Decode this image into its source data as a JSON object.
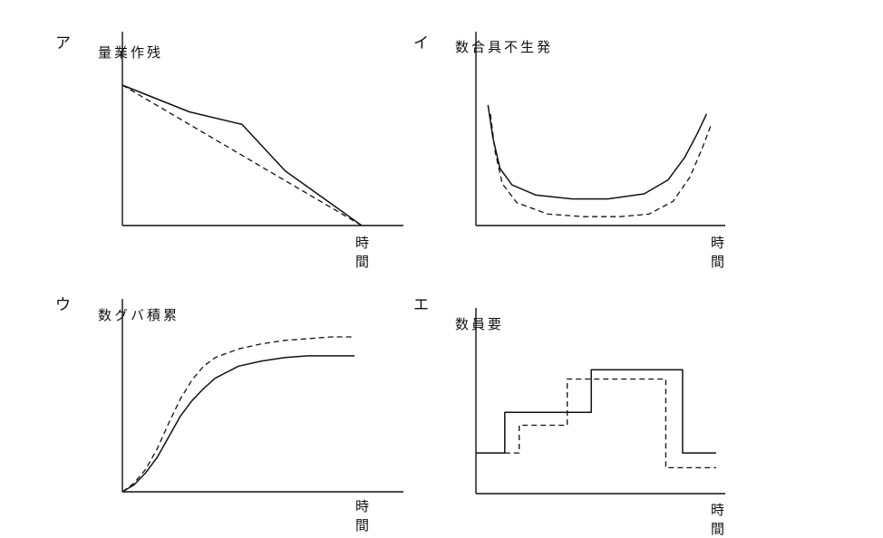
{
  "chart_data": [
    {
      "panel": "ア",
      "type": "line",
      "ylabel": "残作業量",
      "xlabel": "時間",
      "xlim": [
        0,
        10
      ],
      "ylim": [
        0,
        10
      ],
      "series": [
        {
          "style": "solid",
          "x": [
            0,
            2.8,
            5.0,
            6.8,
            10.0
          ],
          "y": [
            10.0,
            8.1,
            7.2,
            3.9,
            0.0
          ]
        },
        {
          "style": "dashed",
          "x": [
            0,
            10.0
          ],
          "y": [
            10.0,
            0.0
          ]
        }
      ]
    },
    {
      "panel": "イ",
      "type": "line",
      "ylabel": "発生不具合数",
      "xlabel": "時間",
      "xlim": [
        0,
        10
      ],
      "ylim": [
        0,
        10
      ],
      "series": [
        {
          "style": "solid",
          "x": [
            0.5,
            0.7,
            1.0,
            1.5,
            2.5,
            4.0,
            5.5,
            7.0,
            8.0,
            8.7,
            9.2,
            9.6
          ],
          "y": [
            9.5,
            7.0,
            4.5,
            3.2,
            2.4,
            2.1,
            2.1,
            2.5,
            3.6,
            5.4,
            7.2,
            8.8
          ]
        },
        {
          "style": "dashed",
          "x": [
            0.6,
            0.8,
            1.1,
            1.7,
            3.0,
            4.5,
            6.0,
            7.2,
            8.2,
            8.9,
            9.4,
            9.8
          ],
          "y": [
            8.8,
            5.8,
            3.3,
            1.8,
            0.9,
            0.7,
            0.7,
            0.9,
            1.9,
            3.8,
            6.0,
            8.0
          ]
        }
      ]
    },
    {
      "panel": "ウ",
      "type": "line",
      "ylabel": "累積バグ数",
      "xlabel": "時間",
      "xlim": [
        0,
        10
      ],
      "ylim": [
        0,
        10
      ],
      "series": [
        {
          "style": "solid",
          "x": [
            0,
            0.5,
            1.0,
            1.5,
            2.0,
            2.5,
            3.0,
            3.5,
            4.0,
            5.0,
            6.0,
            7.0,
            8.0,
            9.0,
            10.0
          ],
          "y": [
            0,
            0.4,
            1.1,
            2.0,
            3.2,
            4.4,
            5.3,
            6.0,
            6.6,
            7.3,
            7.6,
            7.8,
            7.9,
            7.9,
            7.9
          ]
        },
        {
          "style": "dashed",
          "x": [
            0,
            0.5,
            1.0,
            1.5,
            2.0,
            2.5,
            3.0,
            3.5,
            4.0,
            5.0,
            6.0,
            7.0,
            8.0,
            9.0,
            10.0
          ],
          "y": [
            0,
            0.5,
            1.3,
            2.5,
            4.0,
            5.4,
            6.5,
            7.3,
            7.8,
            8.3,
            8.6,
            8.8,
            8.9,
            9.0,
            9.0
          ]
        }
      ]
    },
    {
      "panel": "エ",
      "type": "line",
      "ylabel": "要員数",
      "xlabel": "時間",
      "xlim": [
        0,
        10
      ],
      "ylim": [
        0,
        10
      ],
      "series": [
        {
          "style": "solid",
          "x": [
            0,
            1.2,
            1.2,
            4.8,
            4.8,
            8.6,
            8.6,
            10.0
          ],
          "y": [
            2.2,
            2.2,
            4.4,
            4.4,
            6.7,
            6.7,
            2.2,
            2.2
          ]
        },
        {
          "style": "dashed",
          "x": [
            1.2,
            1.8,
            1.8,
            3.8,
            3.8,
            7.9,
            7.9,
            10.0
          ],
          "y": [
            2.2,
            2.2,
            3.7,
            3.7,
            6.2,
            6.2,
            1.4,
            1.4
          ]
        }
      ]
    }
  ]
}
